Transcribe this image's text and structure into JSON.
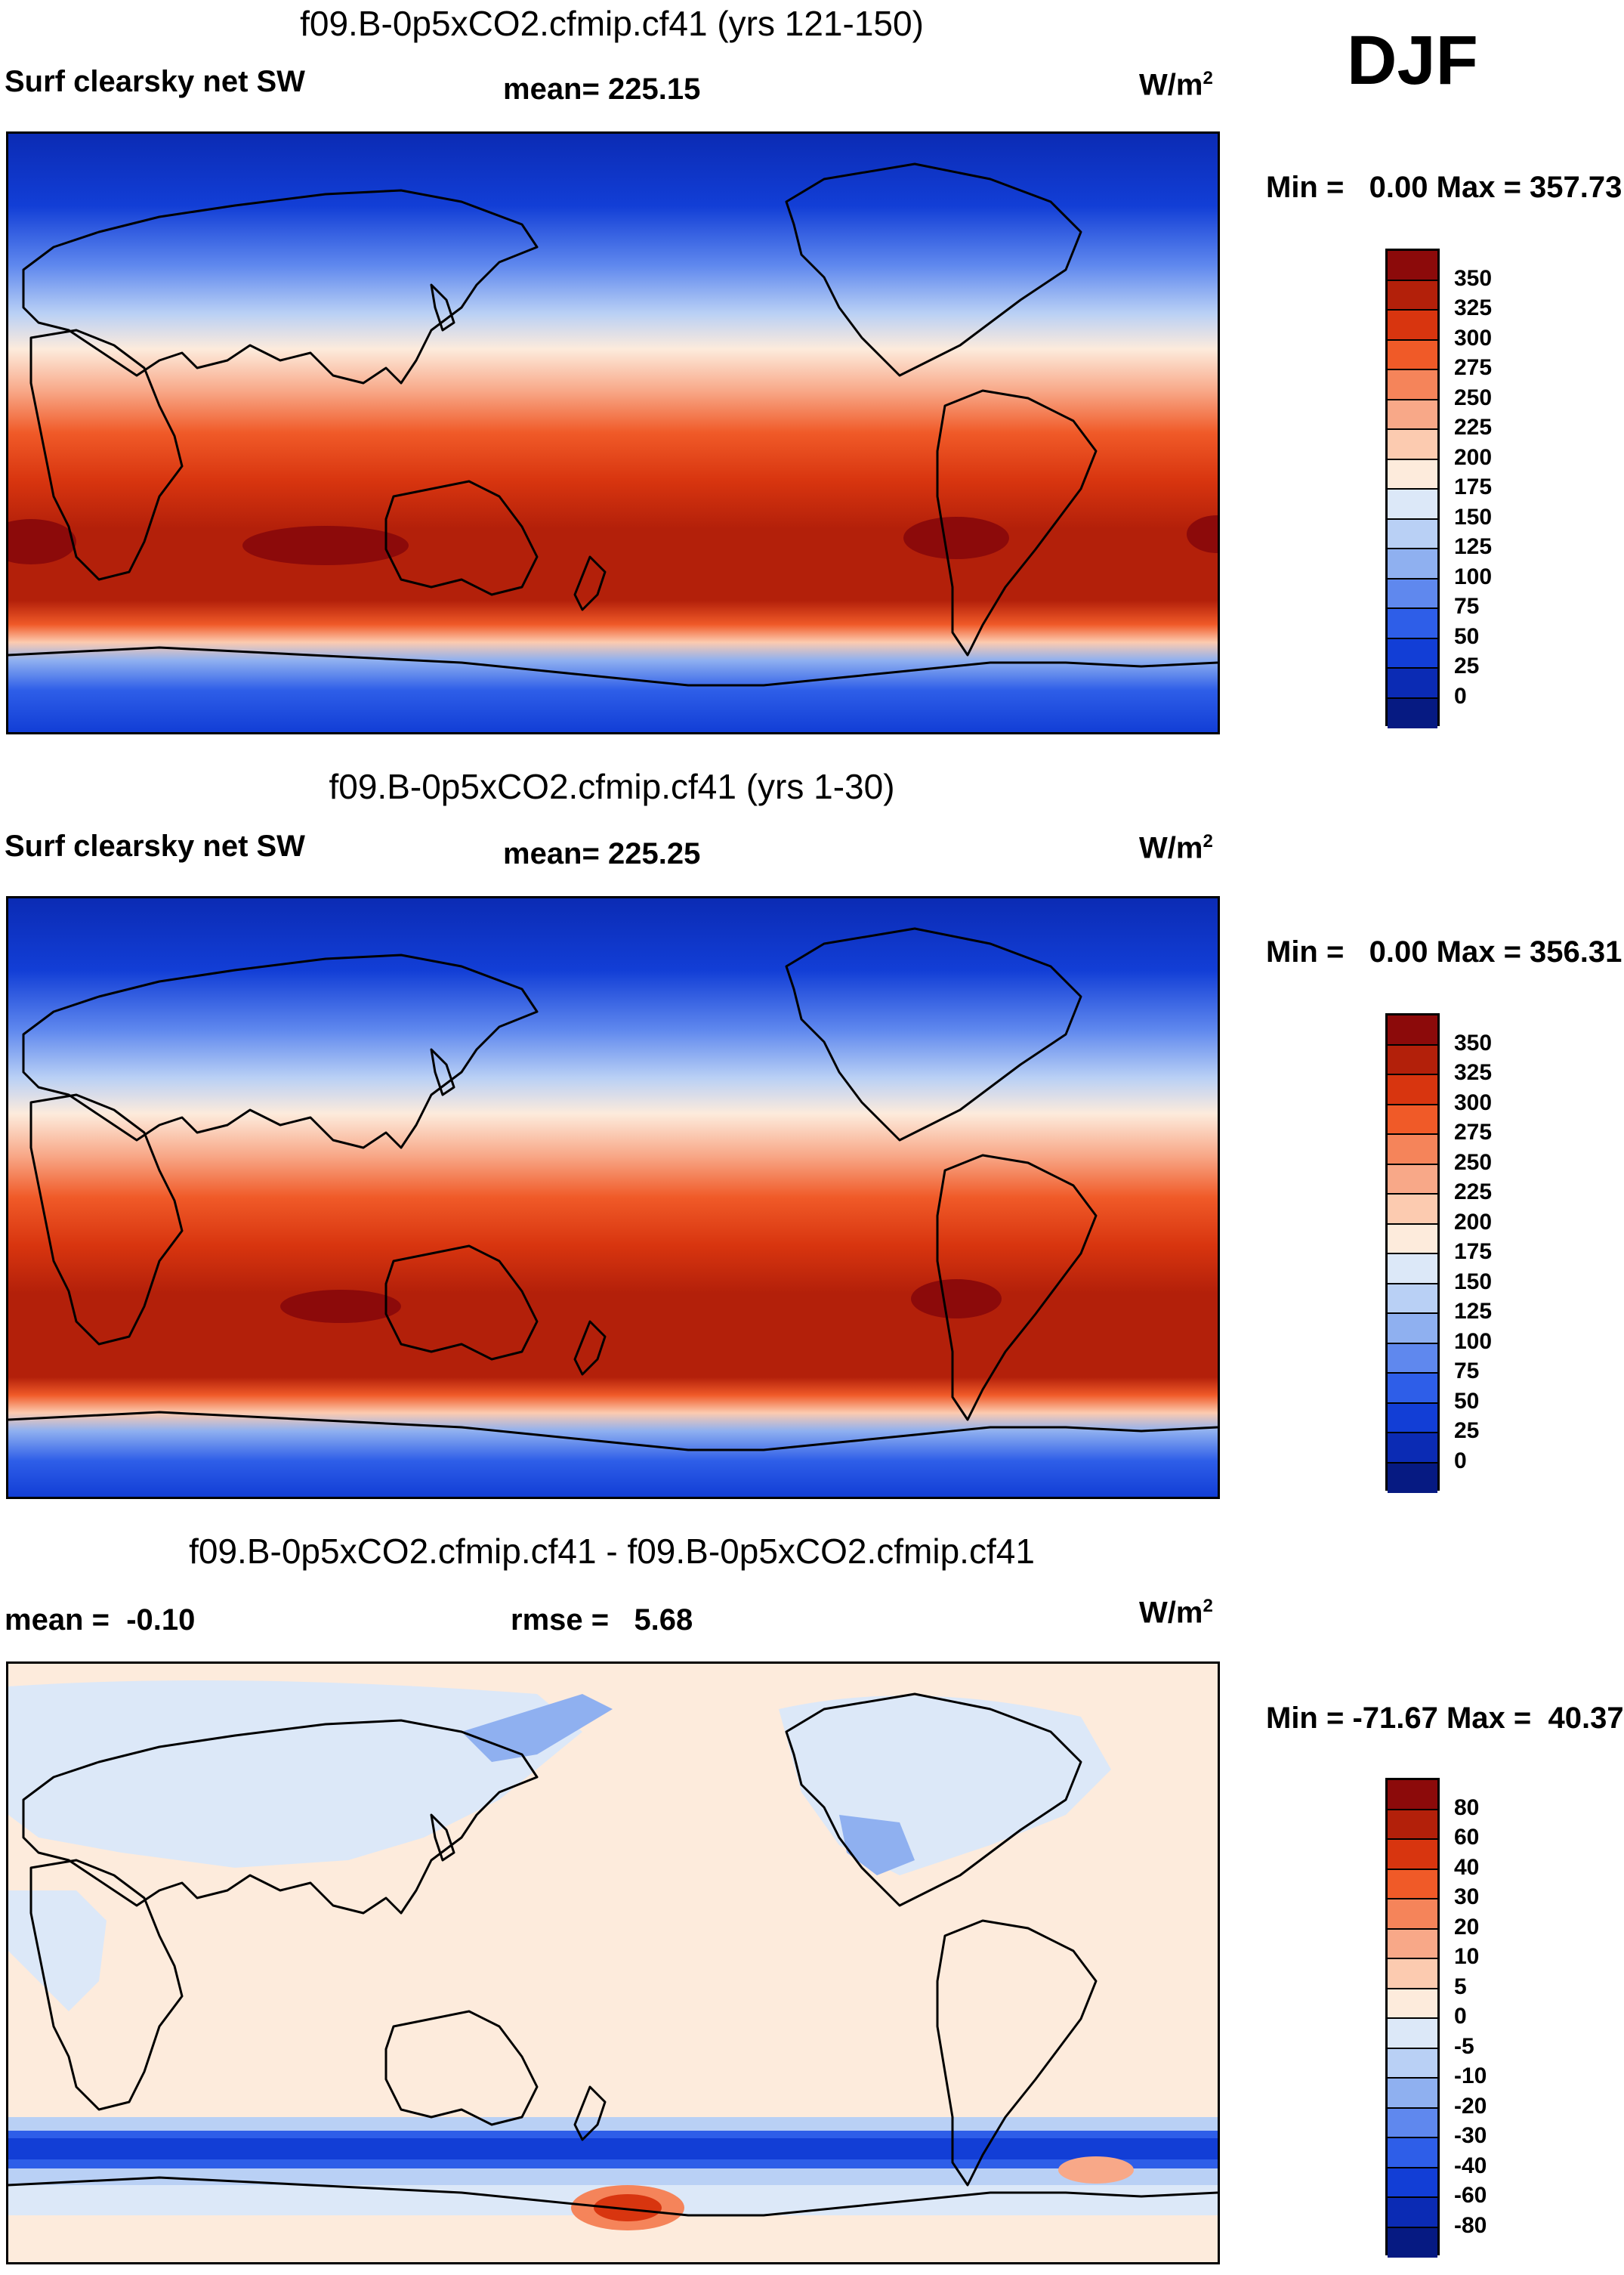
{
  "season": "DJF",
  "units_label": "W/m",
  "units_exp": "2",
  "panels": [
    {
      "title": "f09.B-0p5xCO2.cfmip.cf41 (yrs 121-150)",
      "variable": "Surf clearsky net SW",
      "stat": "mean= 225.15",
      "minmax": "Min =   0.00 Max = 357.73",
      "colorbar": {
        "labels": [
          "350",
          "325",
          "300",
          "275",
          "250",
          "225",
          "200",
          "175",
          "150",
          "125",
          "100",
          "75",
          "50",
          "25",
          "0"
        ],
        "colors": [
          "#8c0a0a",
          "#b3200a",
          "#d8350f",
          "#f05a28",
          "#f5845a",
          "#f8a888",
          "#fccbb0",
          "#fdebdc",
          "#dce8f8",
          "#b9d0f5",
          "#8fb0f0",
          "#5f88ee",
          "#2e5ee8",
          "#123ed6",
          "#0b2bb4",
          "#061a82"
        ]
      }
    },
    {
      "title": "f09.B-0p5xCO2.cfmip.cf41 (yrs 1-30)",
      "variable": "Surf clearsky net SW",
      "stat": "mean= 225.25",
      "minmax": "Min =   0.00 Max = 356.31",
      "colorbar": {
        "labels": [
          "350",
          "325",
          "300",
          "275",
          "250",
          "225",
          "200",
          "175",
          "150",
          "125",
          "100",
          "75",
          "50",
          "25",
          "0"
        ],
        "colors": [
          "#8c0a0a",
          "#b3200a",
          "#d8350f",
          "#f05a28",
          "#f5845a",
          "#f8a888",
          "#fccbb0",
          "#fdebdc",
          "#dce8f8",
          "#b9d0f5",
          "#8fb0f0",
          "#5f88ee",
          "#2e5ee8",
          "#123ed6",
          "#0b2bb4",
          "#061a82"
        ]
      }
    },
    {
      "title": "f09.B-0p5xCO2.cfmip.cf41 - f09.B-0p5xCO2.cfmip.cf41",
      "variable": "mean =  -0.10",
      "stat": "rmse =   5.68",
      "minmax": "Min = -71.67 Max =  40.37",
      "colorbar": {
        "labels": [
          "80",
          "60",
          "40",
          "30",
          "20",
          "10",
          "5",
          "0",
          "-5",
          "-10",
          "-20",
          "-30",
          "-40",
          "-60",
          "-80"
        ],
        "colors": [
          "#8c0a0a",
          "#b3200a",
          "#d8350f",
          "#f05a28",
          "#f5845a",
          "#f8a888",
          "#fccbb0",
          "#fdebdc",
          "#dce8f8",
          "#b9d0f5",
          "#8fb0f0",
          "#5f88ee",
          "#2e5ee8",
          "#123ed6",
          "#0b2bb4",
          "#061a82"
        ]
      }
    }
  ]
}
